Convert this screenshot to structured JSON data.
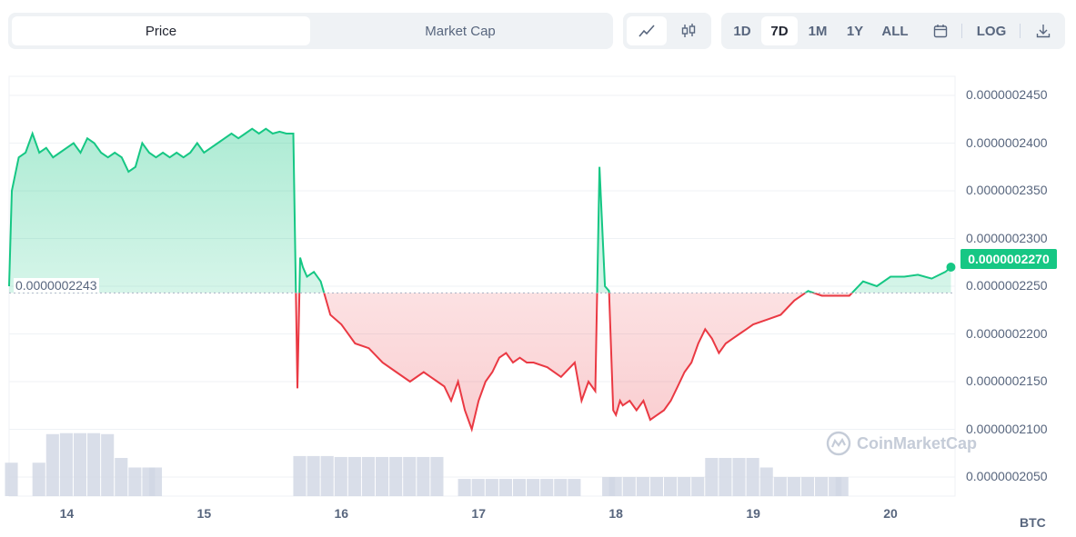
{
  "toolbar": {
    "metric_tabs": [
      {
        "label": "Price",
        "active": true
      },
      {
        "label": "Market Cap",
        "active": false
      }
    ],
    "chart_type_icons": [
      "line-chart-icon",
      "candlestick-icon"
    ],
    "timeframes": [
      {
        "label": "1D",
        "active": false
      },
      {
        "label": "7D",
        "active": true
      },
      {
        "label": "1M",
        "active": false
      },
      {
        "label": "1Y",
        "active": false
      },
      {
        "label": "ALL",
        "active": false
      }
    ],
    "calendar_icon": "calendar-icon",
    "log_label": "LOG",
    "download_icon": "download-icon"
  },
  "colors": {
    "up": "#16c784",
    "down": "#ea3943",
    "volume": "#cfd6e4",
    "grid": "#eff2f5"
  },
  "watermark": "CoinMarketCap",
  "chart_data": {
    "type": "area",
    "unit": "BTC",
    "baseline": 2.243e-07,
    "baseline_label": "0.0000002243",
    "current_price": 2.27e-07,
    "current_price_label": "0.0000002270",
    "y_ticks": [
      "0.0000002450",
      "0.0000002400",
      "0.0000002350",
      "0.0000002300",
      "0.0000002250",
      "0.0000002200",
      "0.0000002150",
      "0.0000002100",
      "0.0000002050"
    ],
    "y_tick_values": [
      2.45e-07,
      2.4e-07,
      2.35e-07,
      2.3e-07,
      2.25e-07,
      2.2e-07,
      2.15e-07,
      2.1e-07,
      2.05e-07
    ],
    "ylim": [
      2.03e-07,
      2.47e-07
    ],
    "x_ticks": [
      "14",
      "15",
      "16",
      "17",
      "18",
      "19",
      "20"
    ],
    "x_tick_values": [
      14,
      15,
      16,
      17,
      18,
      19,
      20
    ],
    "xlim": [
      13.58,
      20.47
    ],
    "series": [
      {
        "x": [
          13.58,
          13.6,
          13.65,
          13.7,
          13.75,
          13.8,
          13.85,
          13.9,
          13.95,
          14.0,
          14.05,
          14.1,
          14.15,
          14.2,
          14.25,
          14.3,
          14.35,
          14.4,
          14.45,
          14.5,
          14.55,
          14.6,
          14.65,
          14.7,
          14.75,
          14.8,
          14.85,
          14.9,
          14.95,
          15.0,
          15.05,
          15.1,
          15.15,
          15.2,
          15.25,
          15.3,
          15.35,
          15.4,
          15.45,
          15.5,
          15.55,
          15.6,
          15.65,
          15.68,
          15.7,
          15.72,
          15.75,
          15.8,
          15.85,
          15.88,
          15.92,
          16.0,
          16.1,
          16.2,
          16.3,
          16.4,
          16.5,
          16.6,
          16.65,
          16.7,
          16.75,
          16.8,
          16.85,
          16.9,
          16.95,
          17.0,
          17.05,
          17.1,
          17.15,
          17.2,
          17.25,
          17.3,
          17.35,
          17.4,
          17.5,
          17.6,
          17.7,
          17.75,
          17.8,
          17.85,
          17.88,
          17.92,
          17.95,
          17.98,
          18.0,
          18.03,
          18.05,
          18.1,
          18.15,
          18.2,
          18.25,
          18.3,
          18.35,
          18.4,
          18.45,
          18.5,
          18.55,
          18.6,
          18.65,
          18.7,
          18.75,
          18.8,
          18.85,
          18.9,
          18.95,
          19.0,
          19.1,
          19.2,
          19.3,
          19.4,
          19.5,
          19.6,
          19.7,
          19.8,
          19.9,
          20.0,
          20.1,
          20.2,
          20.3,
          20.4,
          20.44
        ],
        "y": [
          2.25e-07,
          2.35e-07,
          2.385e-07,
          2.39e-07,
          2.41e-07,
          2.39e-07,
          2.395e-07,
          2.385e-07,
          2.39e-07,
          2.395e-07,
          2.4e-07,
          2.39e-07,
          2.405e-07,
          2.4e-07,
          2.39e-07,
          2.385e-07,
          2.39e-07,
          2.385e-07,
          2.37e-07,
          2.375e-07,
          2.4e-07,
          2.39e-07,
          2.385e-07,
          2.39e-07,
          2.385e-07,
          2.39e-07,
          2.385e-07,
          2.39e-07,
          2.4e-07,
          2.39e-07,
          2.395e-07,
          2.4e-07,
          2.405e-07,
          2.41e-07,
          2.405e-07,
          2.41e-07,
          2.415e-07,
          2.41e-07,
          2.415e-07,
          2.41e-07,
          2.412e-07,
          2.41e-07,
          2.41e-07,
          2.143e-07,
          2.28e-07,
          2.27e-07,
          2.26e-07,
          2.265e-07,
          2.255e-07,
          2.24e-07,
          2.22e-07,
          2.21e-07,
          2.19e-07,
          2.185e-07,
          2.17e-07,
          2.16e-07,
          2.15e-07,
          2.16e-07,
          2.155e-07,
          2.15e-07,
          2.145e-07,
          2.13e-07,
          2.15e-07,
          2.12e-07,
          2.1e-07,
          2.13e-07,
          2.15e-07,
          2.16e-07,
          2.175e-07,
          2.18e-07,
          2.17e-07,
          2.175e-07,
          2.17e-07,
          2.17e-07,
          2.165e-07,
          2.155e-07,
          2.17e-07,
          2.13e-07,
          2.15e-07,
          2.14e-07,
          2.375e-07,
          2.25e-07,
          2.245e-07,
          2.12e-07,
          2.115e-07,
          2.13e-07,
          2.125e-07,
          2.13e-07,
          2.12e-07,
          2.13e-07,
          2.11e-07,
          2.115e-07,
          2.12e-07,
          2.13e-07,
          2.145e-07,
          2.16e-07,
          2.17e-07,
          2.19e-07,
          2.205e-07,
          2.195e-07,
          2.18e-07,
          2.19e-07,
          2.195e-07,
          2.2e-07,
          2.205e-07,
          2.21e-07,
          2.215e-07,
          2.22e-07,
          2.235e-07,
          2.245e-07,
          2.24e-07,
          2.24e-07,
          2.24e-07,
          2.255e-07,
          2.25e-07,
          2.26e-07,
          2.26e-07,
          2.262e-07,
          2.258e-07,
          2.265e-07,
          2.27e-07
        ]
      }
    ],
    "volume": {
      "x": [
        13.6,
        13.8,
        13.9,
        14.0,
        14.1,
        14.2,
        14.3,
        14.4,
        14.5,
        14.6,
        14.65,
        15.7,
        15.8,
        15.9,
        16.0,
        16.1,
        16.2,
        16.3,
        16.4,
        16.5,
        16.6,
        16.7,
        16.9,
        17.0,
        17.1,
        17.2,
        17.3,
        17.4,
        17.5,
        17.6,
        17.7,
        17.95,
        18.0,
        18.1,
        18.2,
        18.3,
        18.4,
        18.5,
        18.6,
        18.7,
        18.8,
        18.9,
        19.0,
        19.1,
        19.2,
        19.3,
        19.4,
        19.5,
        19.6,
        19.65
      ],
      "values": [
        0.35,
        0.35,
        0.65,
        0.66,
        0.66,
        0.66,
        0.65,
        0.4,
        0.3,
        0.3,
        0.3,
        0.42,
        0.42,
        0.42,
        0.41,
        0.41,
        0.41,
        0.41,
        0.41,
        0.41,
        0.41,
        0.41,
        0.18,
        0.18,
        0.18,
        0.18,
        0.18,
        0.18,
        0.18,
        0.18,
        0.18,
        0.2,
        0.2,
        0.2,
        0.2,
        0.2,
        0.2,
        0.2,
        0.2,
        0.4,
        0.4,
        0.4,
        0.4,
        0.3,
        0.2,
        0.2,
        0.2,
        0.2,
        0.2,
        0.2
      ]
    }
  }
}
